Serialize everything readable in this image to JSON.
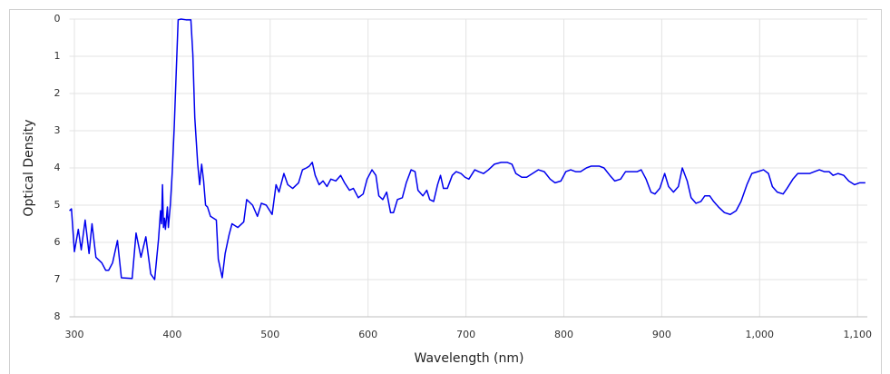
{
  "chart_data": {
    "type": "line",
    "x_label": "Wavelength (nm)",
    "y_label": "Optical Density",
    "xlim": [
      295,
      1110
    ],
    "ylim": [
      8,
      0
    ],
    "xticks": [
      300,
      400,
      500,
      600,
      700,
      800,
      900,
      {
        "value": 1000,
        "label": "1,000"
      },
      {
        "value": 1100,
        "label": "1,100"
      }
    ],
    "yticks": [
      0,
      1,
      2,
      3,
      4,
      5,
      6,
      7,
      8
    ],
    "grid": true,
    "series": [
      {
        "color": "#0000ee",
        "x": [
          295,
          297,
          300,
          304,
          307,
          311,
          315,
          318,
          322,
          328,
          332,
          335,
          339,
          344,
          348,
          359,
          363,
          368,
          373,
          378,
          382,
          386,
          388,
          389,
          390,
          391,
          392,
          393,
          395,
          396,
          398,
          400,
          402,
          404,
          406,
          409,
          414,
          419,
          421,
          423,
          426,
          428,
          430,
          432,
          434,
          436,
          439,
          445,
          447,
          451,
          454,
          458,
          461,
          467,
          473,
          476,
          482,
          487,
          491,
          496,
          502,
          506,
          509,
          514,
          518,
          523,
          529,
          533,
          537,
          540,
          543,
          546,
          550,
          554,
          558,
          562,
          567,
          572,
          576,
          581,
          585,
          590,
          595,
          599,
          604,
          608,
          611,
          615,
          619,
          623,
          626,
          630,
          635,
          639,
          644,
          648,
          651,
          656,
          660,
          663,
          667,
          671,
          674,
          677,
          681,
          686,
          690,
          695,
          699,
          703,
          709,
          713,
          718,
          723,
          729,
          736,
          742,
          747,
          751,
          757,
          762,
          768,
          774,
          780,
          786,
          791,
          797,
          802,
          807,
          812,
          817,
          823,
          828,
          836,
          841,
          847,
          852,
          858,
          863,
          869,
          875,
          879,
          884,
          889,
          893,
          898,
          903,
          907,
          912,
          917,
          921,
          926,
          930,
          935,
          940,
          944,
          949,
          953,
          958,
          964,
          970,
          976,
          981,
          987,
          992,
          998,
          1004,
          1009,
          1013,
          1018,
          1024,
          1028,
          1034,
          1039,
          1045,
          1051,
          1056,
          1061,
          1066,
          1071,
          1075,
          1080,
          1086,
          1091,
          1097,
          1102,
          1108
        ],
        "values": [
          5.15,
          5.1,
          6.25,
          5.65,
          6.2,
          5.4,
          6.3,
          5.5,
          6.4,
          6.55,
          6.75,
          6.75,
          6.55,
          5.95,
          6.95,
          6.97,
          5.75,
          6.4,
          5.85,
          6.85,
          7.0,
          5.9,
          5.15,
          5.5,
          4.45,
          5.6,
          5.35,
          5.65,
          5.05,
          5.6,
          5.0,
          4.1,
          2.9,
          1.45,
          0.02,
          0,
          0.02,
          0.02,
          0.95,
          2.65,
          3.9,
          4.45,
          3.9,
          4.35,
          5.0,
          5.05,
          5.3,
          5.4,
          6.45,
          6.95,
          6.3,
          5.8,
          5.5,
          5.6,
          5.45,
          4.85,
          5.0,
          5.3,
          4.95,
          5.0,
          5.25,
          4.45,
          4.65,
          4.15,
          4.45,
          4.55,
          4.4,
          4.05,
          4.0,
          3.95,
          3.85,
          4.2,
          4.45,
          4.35,
          4.5,
          4.3,
          4.35,
          4.2,
          4.4,
          4.6,
          4.55,
          4.8,
          4.7,
          4.3,
          4.05,
          4.2,
          4.75,
          4.85,
          4.65,
          5.2,
          5.2,
          4.85,
          4.8,
          4.4,
          4.05,
          4.1,
          4.6,
          4.75,
          4.6,
          4.85,
          4.9,
          4.45,
          4.2,
          4.55,
          4.55,
          4.2,
          4.1,
          4.15,
          4.25,
          4.3,
          4.05,
          4.1,
          4.15,
          4.05,
          3.9,
          3.85,
          3.85,
          3.9,
          4.15,
          4.25,
          4.25,
          4.15,
          4.05,
          4.1,
          4.3,
          4.4,
          4.35,
          4.1,
          4.05,
          4.1,
          4.1,
          4.0,
          3.95,
          3.95,
          4.0,
          4.2,
          4.35,
          4.3,
          4.1,
          4.1,
          4.1,
          4.05,
          4.3,
          4.65,
          4.7,
          4.55,
          4.15,
          4.5,
          4.65,
          4.5,
          4.0,
          4.35,
          4.8,
          4.95,
          4.9,
          4.75,
          4.75,
          4.9,
          5.05,
          5.2,
          5.25,
          5.15,
          4.9,
          4.45,
          4.15,
          4.1,
          4.05,
          4.15,
          4.5,
          4.65,
          4.7,
          4.55,
          4.3,
          4.15,
          4.15,
          4.15,
          4.1,
          4.05,
          4.1,
          4.1,
          4.2,
          4.15,
          4.2,
          4.35,
          4.45,
          4.4,
          4.4
        ]
      }
    ]
  }
}
